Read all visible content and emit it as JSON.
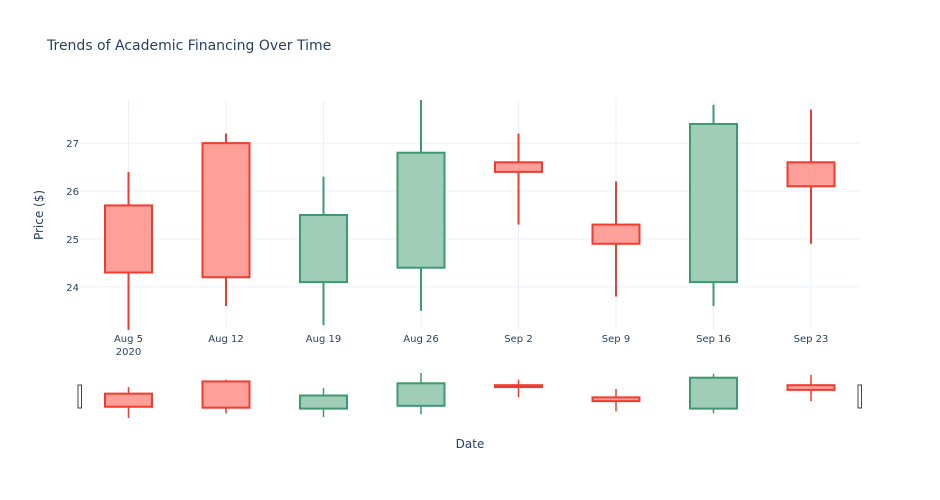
{
  "chart_data": {
    "type": "candlestick",
    "title": "Trends of Academic Financing Over Time",
    "xlabel": "Date",
    "ylabel": "Price ($)",
    "x_ticks": [
      "Aug 5",
      "Aug 12",
      "Aug 19",
      "Aug 26",
      "Sep 2",
      "Sep 9",
      "Sep 16",
      "Sep 23"
    ],
    "x_year_label": "2020",
    "y_ticks": [
      24,
      25,
      26,
      27
    ],
    "ylim": [
      23.1,
      27.9
    ],
    "grid": true,
    "range_slider": true,
    "colors": {
      "increasing_line": "#3d9970",
      "increasing_fill": "#9fcdb8",
      "decreasing_line": "#f03c2f",
      "decreasing_fill": "#ff9f9a",
      "grid": "#ebf0f8",
      "text": "#2a3f5f"
    },
    "candles": [
      {
        "date": "Aug 5",
        "open": 25.7,
        "high": 26.4,
        "low": 23.1,
        "close": 24.3
      },
      {
        "date": "Aug 12",
        "open": 27.0,
        "high": 27.2,
        "low": 23.6,
        "close": 24.2
      },
      {
        "date": "Aug 19",
        "open": 24.1,
        "high": 26.3,
        "low": 23.2,
        "close": 25.5
      },
      {
        "date": "Aug 26",
        "open": 24.4,
        "high": 27.9,
        "low": 23.5,
        "close": 26.8
      },
      {
        "date": "Sep 2",
        "open": 26.6,
        "high": 27.2,
        "low": 25.3,
        "close": 26.4
      },
      {
        "date": "Sep 9",
        "open": 25.3,
        "high": 26.2,
        "low": 23.8,
        "close": 24.9
      },
      {
        "date": "Sep 16",
        "open": 24.1,
        "high": 27.8,
        "low": 23.6,
        "close": 27.4
      },
      {
        "date": "Sep 23",
        "open": 26.6,
        "high": 27.7,
        "low": 24.9,
        "close": 26.1
      }
    ]
  }
}
